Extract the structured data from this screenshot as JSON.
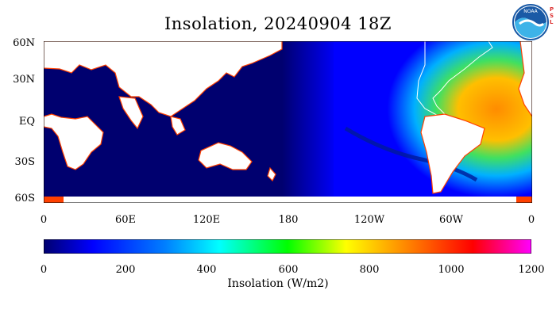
{
  "title": "Insolation, 20240904 18Z",
  "logo": {
    "icon": "noaa-logo-icon",
    "text": "NOAA",
    "side_text": [
      "P",
      "S",
      "L"
    ]
  },
  "map": {
    "lat_labels": [
      "60N",
      "30N",
      "EQ",
      "30S",
      "60S"
    ],
    "lon_labels": [
      "0",
      "60E",
      "120E",
      "180",
      "120W",
      "60W",
      "0"
    ],
    "land_color": "#ffffff",
    "ocean_night_color": "#00006f",
    "coast_color": "#ff4000"
  },
  "colorbar": {
    "ticks": [
      "0",
      "200",
      "400",
      "600",
      "800",
      "1000",
      "1200"
    ],
    "label": "Insolation (W/m2)",
    "range": [
      0,
      1200
    ],
    "colors": [
      "#00006f",
      "#0000ff",
      "#0080ff",
      "#00ffff",
      "#00ff00",
      "#ffff00",
      "#ff8000",
      "#ff0000",
      "#ff00ff"
    ]
  }
}
